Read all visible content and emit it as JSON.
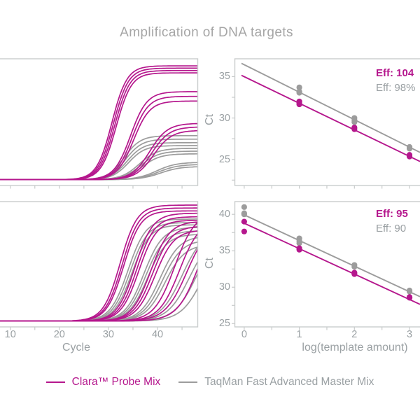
{
  "title": "Amplification of DNA targets",
  "colors": {
    "clara": "#b5178d",
    "taqman": "#9c9c9c",
    "axis_text": "#9aa0a3",
    "title_text": "#a6a6a6",
    "spine": "#c9cccc"
  },
  "legend": {
    "items": [
      {
        "series": "clara",
        "label": "Clara™ Probe Mix"
      },
      {
        "series": "taqman",
        "label": "TaqMan Fast Advanced Master Mix"
      }
    ]
  },
  "axes": {
    "left_xlabel": "Cycle",
    "right_xlabel": "log(template amount)",
    "right_ylabel_top": "Ct",
    "right_ylabel_bottom": "Ct"
  },
  "chart_data": [
    {
      "id": "amp-top-left",
      "type": "line",
      "position": "top-left",
      "title": "",
      "xlabel": "",
      "ylabel": "",
      "xlim": [
        7.9,
        48.2
      ],
      "ylim": [
        -0.05,
        1.03
      ],
      "x_ticks_major": [
        10,
        20,
        30,
        40
      ],
      "x_ticks_minor": [
        15,
        25,
        35,
        45
      ],
      "x_tick_labels": [],
      "grid": false,
      "series": [
        {
          "name": "taqman",
          "curves": [
            {
              "m": 33.2,
              "k": 0.6,
              "p": 0.375
            },
            {
              "m": 33.5,
              "k": 0.6,
              "p": 0.345
            },
            {
              "m": 33.8,
              "k": 0.6,
              "p": 0.315
            },
            {
              "m": 34.1,
              "k": 0.6,
              "p": 0.29
            },
            {
              "m": 36.3,
              "k": 0.55,
              "p": 0.267
            },
            {
              "m": 36.6,
              "k": 0.55,
              "p": 0.243
            },
            {
              "m": 36.9,
              "k": 0.55,
              "p": 0.22
            },
            {
              "m": 39.8,
              "k": 0.5,
              "p": 0.148
            },
            {
              "m": 40.2,
              "k": 0.5,
              "p": 0.13
            },
            {
              "m": 40.6,
              "k": 0.5,
              "p": 0.112
            }
          ]
        },
        {
          "name": "clara",
          "curves": [
            {
              "m": 30.7,
              "k": 0.65,
              "p": 0.97
            },
            {
              "m": 31.0,
              "k": 0.65,
              "p": 0.95
            },
            {
              "m": 31.3,
              "k": 0.65,
              "p": 0.93
            },
            {
              "m": 31.6,
              "k": 0.65,
              "p": 0.91
            },
            {
              "m": 34.5,
              "k": 0.6,
              "p": 0.75
            },
            {
              "m": 34.8,
              "k": 0.6,
              "p": 0.71
            },
            {
              "m": 35.1,
              "k": 0.6,
              "p": 0.67
            },
            {
              "m": 38.4,
              "k": 0.55,
              "p": 0.48
            },
            {
              "m": 38.8,
              "k": 0.55,
              "p": 0.45
            },
            {
              "m": 39.2,
              "k": 0.55,
              "p": 0.42
            }
          ]
        }
      ]
    },
    {
      "id": "std-top-right",
      "type": "scatter",
      "position": "top-right",
      "title": "",
      "xlabel": "",
      "ylabel": "Ct",
      "xlim": [
        -0.17,
        3.19
      ],
      "ylim": [
        21.85,
        37.15
      ],
      "x_ticks_major": [
        0,
        1,
        2,
        3
      ],
      "x_ticks_minor": [
        0.5,
        1.5,
        2.5
      ],
      "x_tick_labels": [],
      "y_ticks_major": [
        25,
        30,
        35
      ],
      "y_ticks_minor": [
        22.5,
        27.5,
        32.5
      ],
      "y_tick_labels": [
        "25",
        "30",
        "35"
      ],
      "grid": false,
      "series": [
        {
          "name": "taqman",
          "points": [
            [
              1,
              33.7
            ],
            [
              1,
              33.2
            ],
            [
              1,
              33.05
            ],
            [
              2,
              30.0
            ],
            [
              2,
              29.75
            ],
            [
              2,
              29.5
            ],
            [
              3,
              26.5
            ],
            [
              3,
              26.3
            ]
          ],
          "line": {
            "x1": -0.05,
            "y1": 36.6,
            "x2": 3.19,
            "y2": 25.85
          }
        },
        {
          "name": "clara",
          "points": [
            [
              1,
              32.0
            ],
            [
              1,
              31.8
            ],
            [
              1,
              31.65
            ],
            [
              2,
              28.85
            ],
            [
              2,
              28.65
            ],
            [
              3,
              25.55
            ],
            [
              3,
              25.35
            ]
          ],
          "line": {
            "x1": -0.05,
            "y1": 35.15,
            "x2": 3.19,
            "y2": 24.75
          }
        }
      ],
      "eff_labels": [
        {
          "series": "clara",
          "text": "Eff: 104"
        },
        {
          "series": "taqman",
          "text": "Eff: 98%"
        }
      ]
    },
    {
      "id": "amp-bottom-left",
      "type": "line",
      "position": "bottom-left",
      "title": "",
      "xlabel": "Cycle",
      "ylabel": "",
      "xlim": [
        7.9,
        48.2
      ],
      "ylim": [
        -0.05,
        1.03
      ],
      "x_ticks_major": [
        10,
        20,
        30,
        40
      ],
      "x_ticks_minor": [
        15,
        25,
        35,
        45
      ],
      "x_tick_labels": [
        "10",
        "20",
        "30",
        "40"
      ],
      "grid": false,
      "series": [
        {
          "name": "taqman",
          "curves": [
            {
              "m": 34.0,
              "k": 0.55,
              "p": 0.88
            },
            {
              "m": 34.4,
              "k": 0.55,
              "p": 0.85
            },
            {
              "m": 34.8,
              "k": 0.55,
              "p": 0.83
            },
            {
              "m": 37.2,
              "k": 0.52,
              "p": 0.81
            },
            {
              "m": 37.6,
              "k": 0.52,
              "p": 0.78
            },
            {
              "m": 38.0,
              "k": 0.52,
              "p": 0.75
            },
            {
              "m": 40.5,
              "k": 0.5,
              "p": 0.735
            },
            {
              "m": 41.0,
              "k": 0.5,
              "p": 0.7
            },
            {
              "m": 41.5,
              "k": 0.5,
              "p": 0.66
            },
            {
              "m": 45.0,
              "k": 0.46,
              "p": 0.785
            },
            {
              "m": 46.5,
              "k": 0.45,
              "p": 0.75
            },
            {
              "m": 48.0,
              "k": 0.44,
              "p": 0.785
            },
            {
              "m": 49.5,
              "k": 0.44,
              "p": 0.785
            }
          ]
        },
        {
          "name": "clara",
          "curves": [
            {
              "m": 32.4,
              "k": 0.58,
              "p": 1.0
            },
            {
              "m": 32.8,
              "k": 0.58,
              "p": 0.975
            },
            {
              "m": 33.1,
              "k": 0.58,
              "p": 0.95
            },
            {
              "m": 35.4,
              "k": 0.55,
              "p": 0.93
            },
            {
              "m": 35.8,
              "k": 0.55,
              "p": 0.9
            },
            {
              "m": 36.2,
              "k": 0.55,
              "p": 0.87
            },
            {
              "m": 38.6,
              "k": 0.52,
              "p": 0.86
            },
            {
              "m": 39.0,
              "k": 0.52,
              "p": 0.82
            },
            {
              "m": 39.5,
              "k": 0.52,
              "p": 0.785
            },
            {
              "m": 43.5,
              "k": 0.48,
              "p": 0.94
            },
            {
              "m": 44.5,
              "k": 0.48,
              "p": 0.88
            },
            {
              "m": 46.0,
              "k": 0.45,
              "p": 0.85
            },
            {
              "m": 48.5,
              "k": 0.45,
              "p": 0.97
            }
          ]
        }
      ]
    },
    {
      "id": "std-bottom-right",
      "type": "scatter",
      "position": "bottom-right",
      "title": "",
      "xlabel": "log(template amount)",
      "ylabel": "Ct",
      "xlim": [
        -0.17,
        3.19
      ],
      "ylim": [
        24.55,
        41.75
      ],
      "x_ticks_major": [
        0,
        1,
        2,
        3
      ],
      "x_ticks_minor": [
        0.5,
        1.5,
        2.5
      ],
      "x_tick_labels": [
        "0",
        "1",
        "2",
        "3"
      ],
      "y_ticks_major": [
        25,
        30,
        35,
        40
      ],
      "y_ticks_minor": [
        27.5,
        32.5,
        37.5
      ],
      "y_tick_labels": [
        "25",
        "30",
        "35",
        "40"
      ],
      "grid": false,
      "series": [
        {
          "name": "taqman",
          "points": [
            [
              0,
              41.0
            ],
            [
              0,
              40.15
            ],
            [
              0,
              40.0
            ],
            [
              1,
              36.7
            ],
            [
              1,
              36.35
            ],
            [
              1,
              36.05
            ],
            [
              2,
              33.05
            ],
            [
              2,
              32.8
            ],
            [
              3,
              29.55
            ],
            [
              3,
              29.4
            ]
          ],
          "line": {
            "x1": -0.05,
            "y1": 40.1,
            "x2": 3.19,
            "y2": 28.7
          }
        },
        {
          "name": "clara",
          "points": [
            [
              0,
              39.0
            ],
            [
              0,
              37.65
            ],
            [
              1,
              35.35
            ],
            [
              1,
              35.15
            ],
            [
              2,
              32.0
            ],
            [
              2,
              31.8
            ],
            [
              3,
              28.65
            ],
            [
              3,
              28.55
            ]
          ],
          "line": {
            "x1": -0.05,
            "y1": 38.95,
            "x2": 3.19,
            "y2": 27.65
          }
        }
      ],
      "eff_labels": [
        {
          "series": "clara",
          "text": "Eff: 95"
        },
        {
          "series": "taqman",
          "text": "Eff: 90"
        }
      ]
    }
  ]
}
